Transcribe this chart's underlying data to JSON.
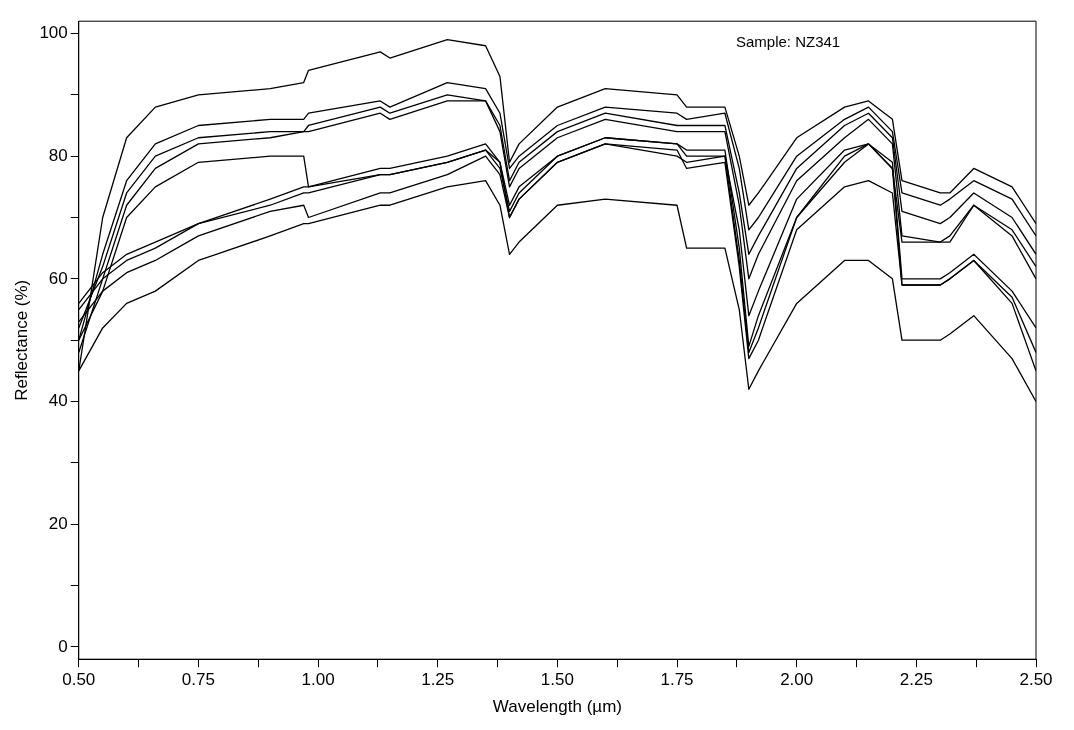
{
  "chart_data": {
    "type": "line",
    "xlabel": "Wavelength (µm)",
    "ylabel": "Reflectance (%)",
    "annotations": [
      "Sample: NZ341"
    ],
    "x": [
      0.5,
      0.55,
      0.6,
      0.66,
      0.75,
      0.9,
      0.97,
      0.98,
      1.13,
      1.15,
      1.27,
      1.35,
      1.38,
      1.4,
      1.42,
      1.5,
      1.6,
      1.75,
      1.77,
      1.85,
      1.88,
      1.9,
      1.92,
      2.0,
      2.1,
      2.15,
      2.2,
      2.22,
      2.3,
      2.32,
      2.37,
      2.45,
      2.5
    ],
    "series": [
      {
        "color": "#000000",
        "values": [
          45,
          70,
          83,
          88,
          90,
          91,
          92,
          94,
          97,
          96,
          99,
          98,
          93,
          79,
          82,
          88,
          91,
          90,
          88,
          88,
          80,
          72,
          74,
          83,
          88,
          89,
          86,
          76,
          74,
          74,
          78,
          75,
          69
        ]
      },
      {
        "color": "#000000",
        "values": [
          50,
          64,
          76,
          82,
          85,
          86,
          86,
          87,
          89,
          88,
          92,
          91,
          87,
          78,
          80,
          85,
          88,
          87,
          86,
          87,
          78,
          68,
          70,
          80,
          86,
          88,
          84,
          74,
          72,
          73,
          76,
          73,
          67
        ]
      },
      {
        "color": "#000000",
        "values": [
          52,
          62,
          74,
          80,
          83,
          84,
          84,
          85,
          88,
          87,
          90,
          89,
          85,
          76,
          79,
          84,
          87,
          85,
          85,
          85,
          74,
          64,
          67,
          78,
          85,
          87,
          83,
          71,
          69,
          70,
          74,
          70,
          64
        ]
      },
      {
        "color": "#000000",
        "values": [
          48,
          60,
          72,
          78,
          82,
          83,
          84,
          84,
          87,
          86,
          89,
          89,
          84,
          75,
          78,
          83,
          86,
          84,
          84,
          84,
          72,
          60,
          64,
          76,
          83,
          86,
          82,
          67,
          66,
          66,
          72,
          68,
          62
        ]
      },
      {
        "color": "#000000",
        "values": [
          50,
          58,
          70,
          75,
          79,
          80,
          80,
          75,
          77,
          77,
          79,
          81,
          79,
          70,
          73,
          79,
          82,
          80,
          79,
          80,
          68,
          54,
          58,
          73,
          81,
          82,
          79,
          60,
          60,
          61,
          64,
          58,
          52
        ]
      },
      {
        "color": "#000000",
        "values": [
          55,
          60,
          63,
          65,
          69,
          73,
          75,
          75,
          78,
          78,
          80,
          82,
          79,
          72,
          75,
          80,
          83,
          82,
          81,
          81,
          65,
          49,
          54,
          70,
          80,
          82,
          78,
          59,
          59,
          60,
          63,
          57,
          48
        ]
      },
      {
        "color": "#000000",
        "values": [
          56,
          61,
          64,
          66,
          69,
          72,
          74,
          74,
          77,
          77,
          79,
          81,
          78,
          71,
          74,
          80,
          83,
          82,
          80,
          80,
          63,
          48,
          52,
          70,
          79,
          82,
          78,
          66,
          66,
          67,
          72,
          67,
          60
        ]
      },
      {
        "color": "#000000",
        "values": [
          53,
          58,
          61,
          63,
          67,
          71,
          72,
          70,
          74,
          74,
          77,
          80,
          77,
          70,
          73,
          79,
          82,
          81,
          78,
          79,
          62,
          47,
          50,
          68,
          75,
          76,
          74,
          59,
          59,
          60,
          63,
          56,
          45
        ]
      },
      {
        "color": "#000000",
        "values": [
          45,
          52,
          56,
          58,
          63,
          67,
          69,
          69,
          72,
          72,
          75,
          76,
          72,
          64,
          66,
          72,
          73,
          72,
          65,
          65,
          55,
          42,
          45,
          56,
          63,
          63,
          60,
          50,
          50,
          51,
          54,
          47,
          40
        ]
      }
    ],
    "xlim": [
      0.5,
      2.5
    ],
    "xticks": [
      {
        "value": 0.5,
        "label": "0.50"
      },
      {
        "value": 0.625,
        "label": null
      },
      {
        "value": 0.75,
        "label": "0.75"
      },
      {
        "value": 0.875,
        "label": null
      },
      {
        "value": 1,
        "label": "1.00"
      },
      {
        "value": 1.125,
        "label": null
      },
      {
        "value": 1.25,
        "label": "1.25"
      },
      {
        "value": 1.375,
        "label": null
      },
      {
        "value": 1.5,
        "label": "1.50"
      },
      {
        "value": 1.625,
        "label": null
      },
      {
        "value": 1.75,
        "label": "1.75"
      },
      {
        "value": 1.875,
        "label": null
      },
      {
        "value": 2,
        "label": "2.00"
      },
      {
        "value": 2.125,
        "label": null
      },
      {
        "value": 2.25,
        "label": "2.25"
      },
      {
        "value": 2.375,
        "label": null
      },
      {
        "value": 2.5,
        "label": "2.50"
      }
    ],
    "ylim": [
      -2,
      102
    ],
    "yticks": [
      0,
      {
        "value": 10,
        "label": null
      },
      20,
      {
        "value": 30,
        "label": null
      },
      40,
      {
        "value": 50,
        "label": null
      },
      60,
      {
        "value": 70,
        "label": null
      },
      80,
      {
        "value": 90,
        "label": null
      },
      100
    ],
    "grid": false,
    "legend": false,
    "marker": "none",
    "line_style": "solid"
  }
}
